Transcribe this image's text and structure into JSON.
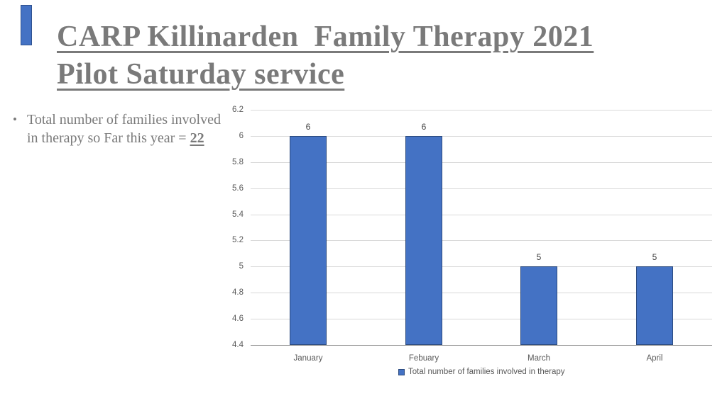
{
  "slide": {
    "title_line1": "CARP Killinarden  Family Therapy 2021",
    "title_line2": "Pilot Saturday service",
    "bullet": {
      "marker": "•",
      "text_before": "Total number of families involved in therapy so Far this year = ",
      "highlight": "22"
    },
    "decor": {
      "fill": "#4472C4",
      "border": "#2F528F"
    },
    "text_color": "#7a7a7a"
  },
  "chart_data": {
    "type": "bar",
    "title": "",
    "xlabel": "",
    "ylabel": "",
    "categories": [
      "January",
      "Febuary",
      "March",
      "April"
    ],
    "series": [
      {
        "name": "Total number of families involved in therapy",
        "values": [
          6,
          6,
          5,
          5
        ]
      }
    ],
    "data_labels": [
      "6",
      "6",
      "5",
      "5"
    ],
    "y_ticks": [
      "6.2",
      "6",
      "5.8",
      "5.6",
      "5.4",
      "5.2",
      "5",
      "4.8",
      "4.6",
      "4.4"
    ],
    "ylim": [
      4.4,
      6.2
    ],
    "grid": true,
    "legend_position": "bottom",
    "legend_label": "Total number of families involved in therapy",
    "colors": {
      "bar_fill": "#4472C4",
      "bar_border": "#2B4A7E",
      "gridline": "#D9D9D9",
      "axis_line": "#909090",
      "tick_text": "#595959",
      "data_label_text": "#3F3F3F"
    }
  }
}
